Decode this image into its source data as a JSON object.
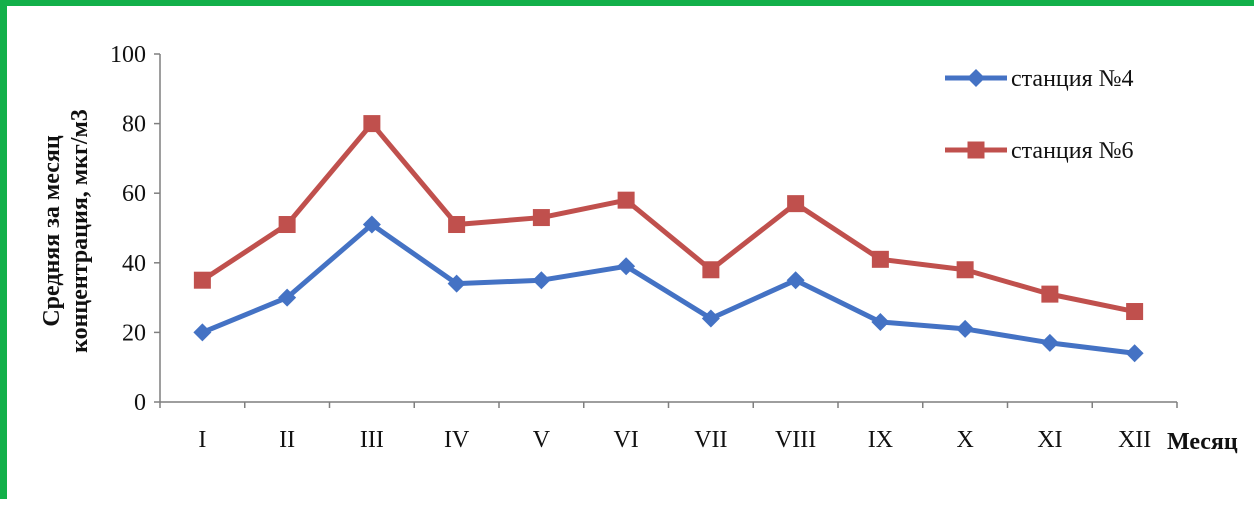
{
  "chart_data": {
    "type": "line",
    "categories": [
      "I",
      "II",
      "III",
      "IV",
      "V",
      "VI",
      "VII",
      "VIII",
      "IX",
      "X",
      "XI",
      "XII"
    ],
    "series": [
      {
        "name": "станция №4",
        "values": [
          20,
          30,
          51,
          34,
          35,
          39,
          24,
          35,
          23,
          21,
          17,
          14
        ],
        "color": "#4472c4",
        "marker": "diamond"
      },
      {
        "name": "станция №6",
        "values": [
          35,
          51,
          80,
          51,
          53,
          58,
          38,
          57,
          41,
          38,
          31,
          26
        ],
        "color": "#c0504d",
        "marker": "square"
      }
    ],
    "xlabel": "Месяц",
    "ylabel_lines": [
      "Средняя за месяц",
      "концентрация, мкг/м3"
    ],
    "ylim": [
      0,
      100
    ],
    "yticks": [
      "0",
      "20",
      "40",
      "60",
      "80",
      "100"
    ],
    "grid": false,
    "legend": "top-right"
  },
  "frame": {
    "border_color": "#12b04a"
  }
}
